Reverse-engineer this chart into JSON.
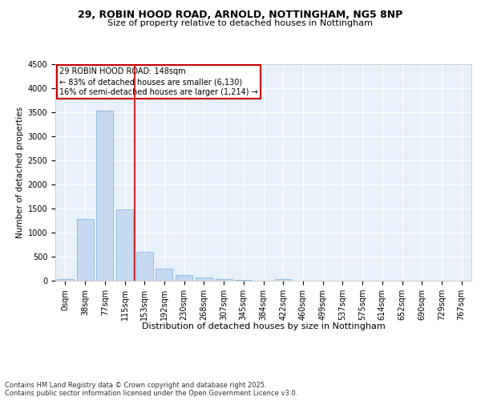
{
  "title": "29, ROBIN HOOD ROAD, ARNOLD, NOTTINGHAM, NG5 8NP",
  "subtitle": "Size of property relative to detached houses in Nottingham",
  "xlabel": "Distribution of detached houses by size in Nottingham",
  "ylabel": "Number of detached properties",
  "bar_values": [
    30,
    1280,
    3530,
    1490,
    600,
    245,
    115,
    70,
    35,
    20,
    0,
    40,
    0,
    0,
    0,
    0,
    0,
    0,
    0,
    0,
    0
  ],
  "bar_labels": [
    "0sqm",
    "38sqm",
    "77sqm",
    "115sqm",
    "153sqm",
    "192sqm",
    "230sqm",
    "268sqm",
    "307sqm",
    "345sqm",
    "384sqm",
    "422sqm",
    "460sqm",
    "499sqm",
    "537sqm",
    "575sqm",
    "614sqm",
    "652sqm",
    "690sqm",
    "729sqm",
    "767sqm"
  ],
  "bar_color": "#c5daf0",
  "bar_edge_color": "#7aade0",
  "background_color": "#e8f0fa",
  "grid_color": "#ffffff",
  "vline_color": "#cc0000",
  "vline_x_index": 3.5,
  "annotation_text": "29 ROBIN HOOD ROAD: 148sqm\n← 83% of detached houses are smaller (6,130)\n16% of semi-detached houses are larger (1,214) →",
  "annotation_box_edge_color": "#cc0000",
  "ylim": [
    0,
    4500
  ],
  "yticks": [
    0,
    500,
    1000,
    1500,
    2000,
    2500,
    3000,
    3500,
    4000,
    4500
  ],
  "footer_text": "Contains HM Land Registry data © Crown copyright and database right 2025.\nContains public sector information licensed under the Open Government Licence v3.0.",
  "title_fontsize": 9,
  "subtitle_fontsize": 8,
  "ylabel_fontsize": 7.5,
  "xlabel_fontsize": 8,
  "tick_fontsize": 7,
  "annot_fontsize": 7,
  "footer_fontsize": 6
}
